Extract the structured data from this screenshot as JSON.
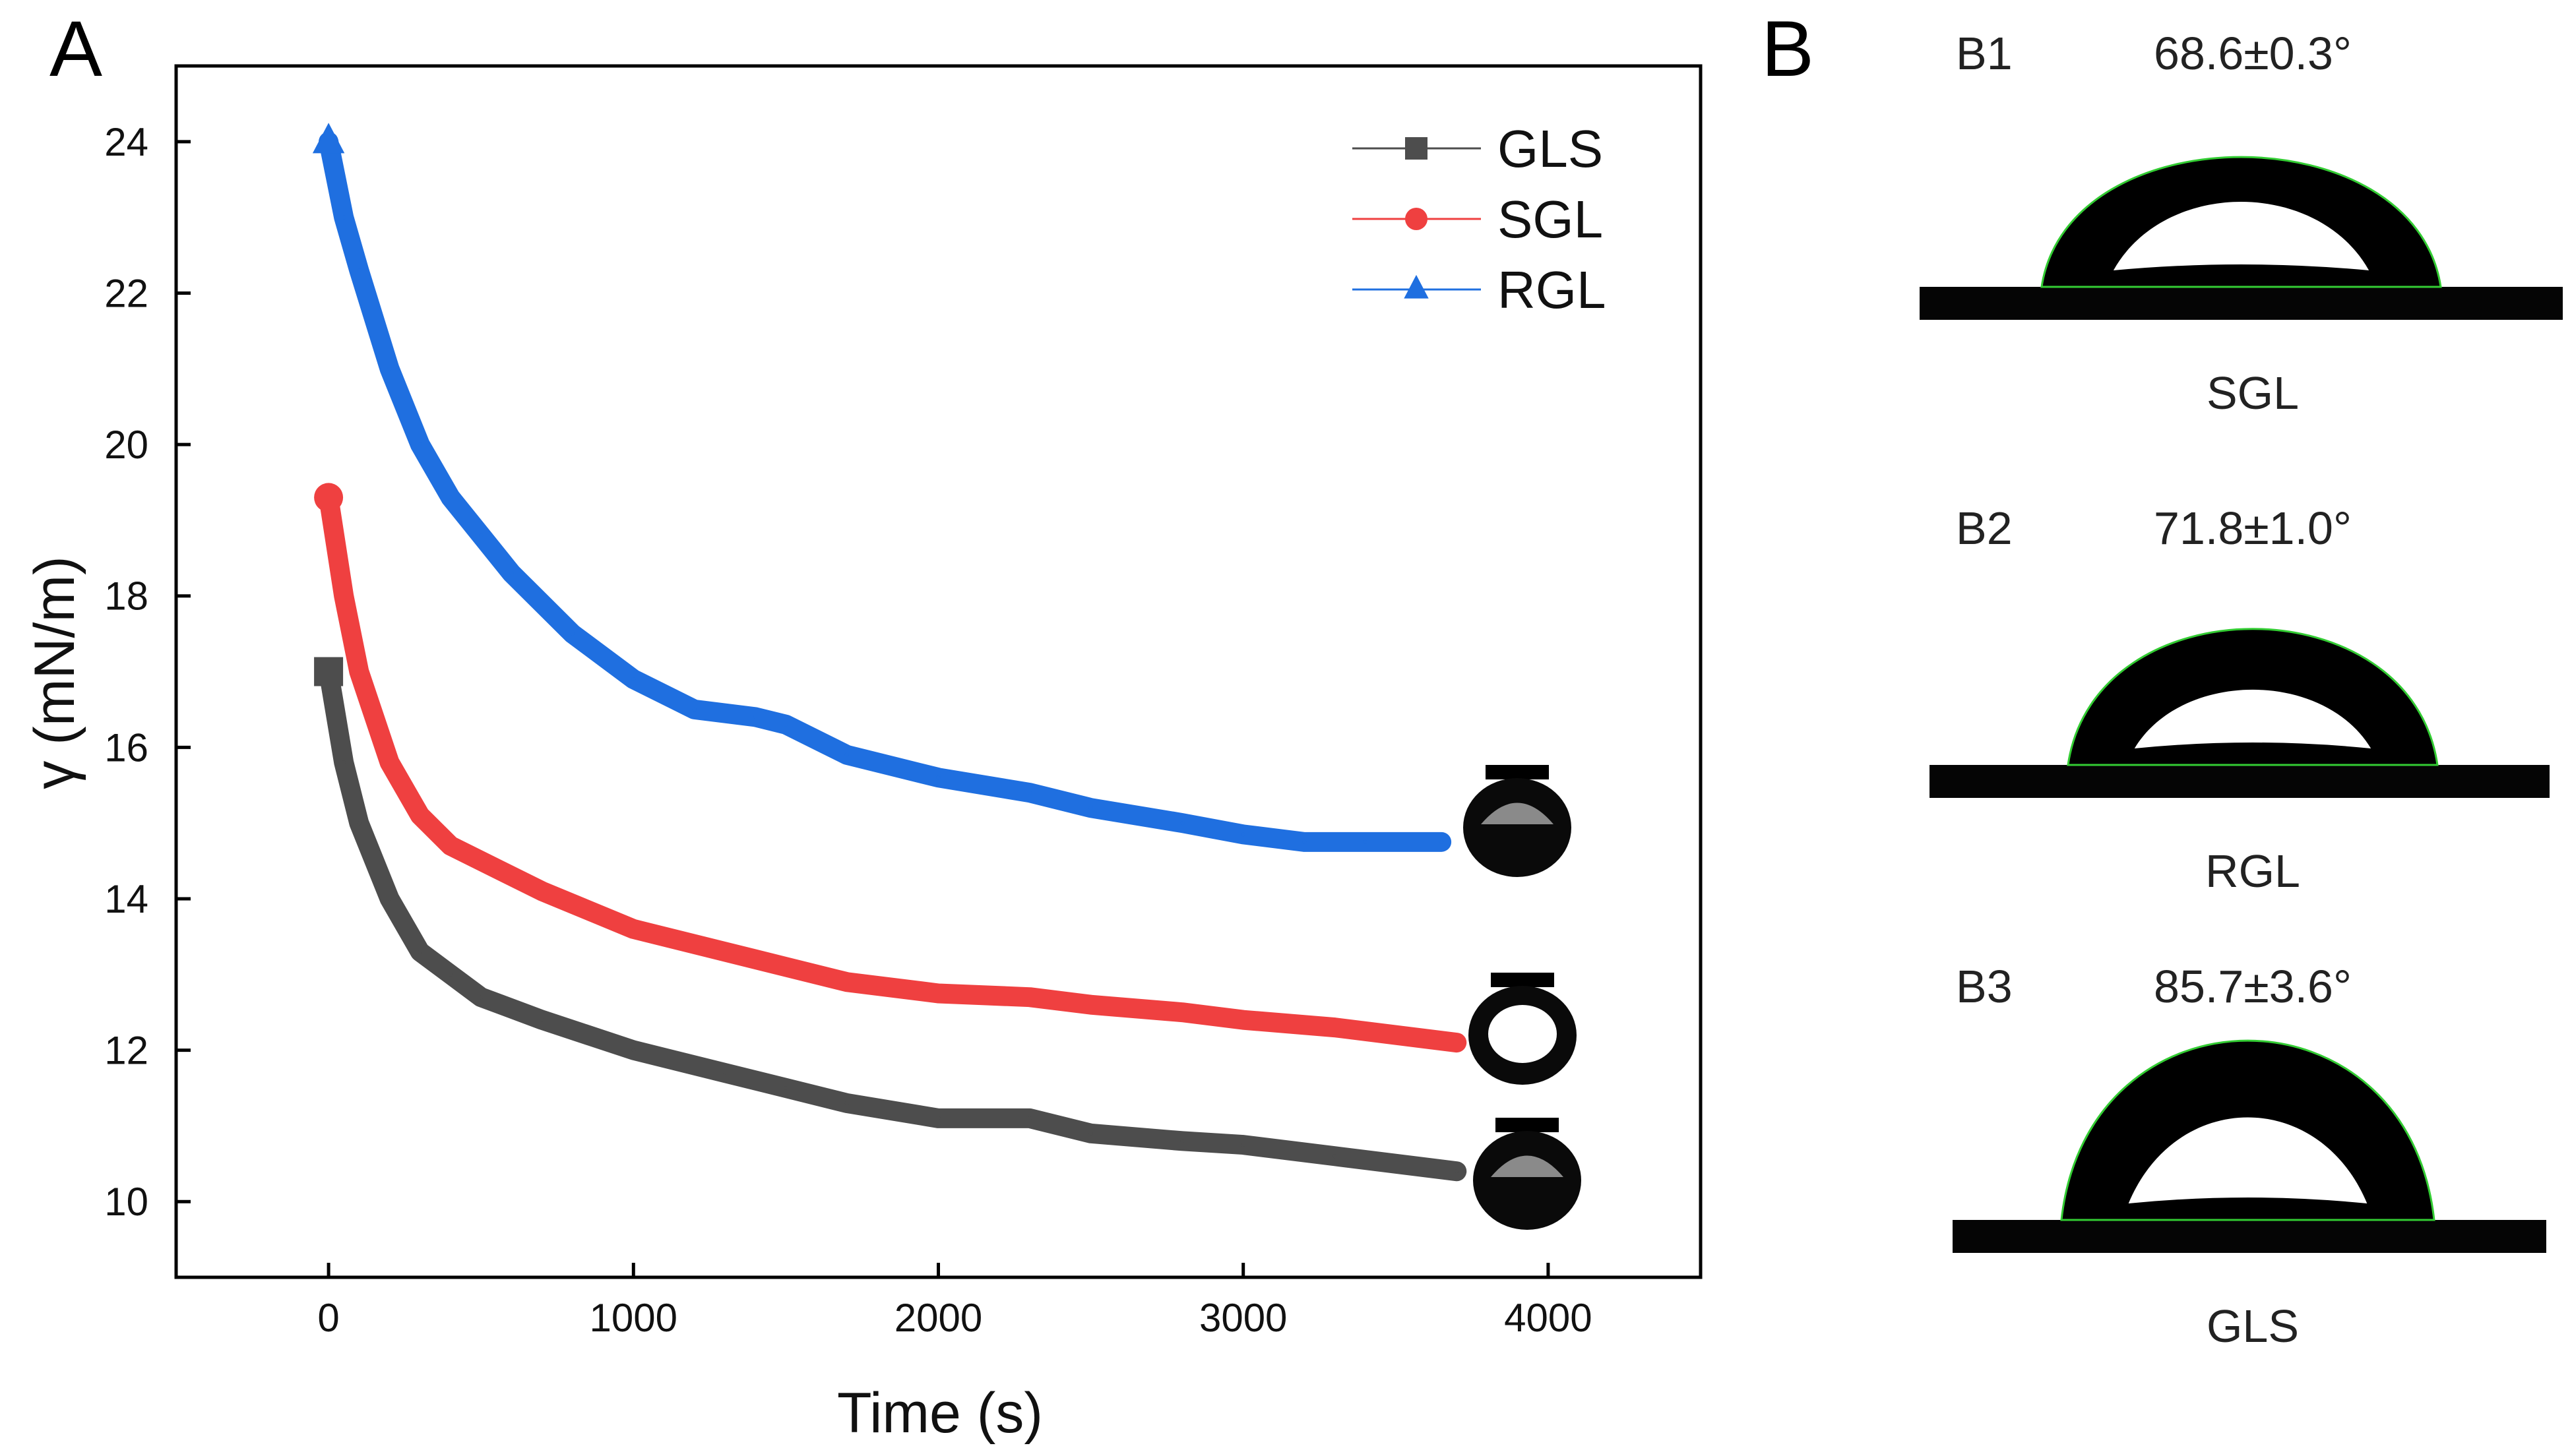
{
  "panels": {
    "a": "A",
    "b": "B"
  },
  "chart_data": {
    "type": "line",
    "title": "",
    "xlabel": "Time (s)",
    "ylabel": "γ (mN/m)",
    "xlim": [
      -500,
      4500
    ],
    "ylim": [
      9,
      25
    ],
    "xticks": [
      0,
      1000,
      2000,
      3000,
      4000
    ],
    "yticks": [
      10,
      12,
      14,
      16,
      18,
      20,
      22,
      24
    ],
    "grid": false,
    "legend_position": "top-right",
    "series": [
      {
        "name": "GLS",
        "color": "#4d4d4d",
        "marker": "square",
        "x": [
          0,
          50,
          100,
          200,
          300,
          400,
          500,
          700,
          1000,
          1300,
          1500,
          1700,
          2000,
          2300,
          2500,
          2800,
          3000,
          3300,
          3700
        ],
        "y": [
          17,
          15.8,
          15,
          14,
          13.3,
          13,
          12.7,
          12.4,
          12,
          11.7,
          11.5,
          11.3,
          11.1,
          11.1,
          10.9,
          10.8,
          10.75,
          10.6,
          10.4
        ]
      },
      {
        "name": "SGL",
        "color": "#ef4040",
        "marker": "circle",
        "x": [
          0,
          50,
          100,
          200,
          300,
          400,
          500,
          700,
          1000,
          1300,
          1500,
          1700,
          2000,
          2300,
          2500,
          2800,
          3000,
          3300,
          3700
        ],
        "y": [
          19.3,
          18,
          17,
          15.8,
          15.1,
          14.7,
          14.5,
          14.1,
          13.6,
          13.3,
          13.1,
          12.9,
          12.75,
          12.7,
          12.6,
          12.5,
          12.4,
          12.3,
          12.1
        ]
      },
      {
        "name": "RGL",
        "color": "#1f6fe0",
        "marker": "triangle",
        "x": [
          0,
          50,
          100,
          200,
          300,
          400,
          500,
          600,
          800,
          1000,
          1200,
          1400,
          1500,
          1700,
          2000,
          2300,
          2500,
          2800,
          3000,
          3200,
          3400,
          3650
        ],
        "y": [
          24,
          23,
          22.3,
          21,
          20,
          19.3,
          18.8,
          18.3,
          17.5,
          16.9,
          16.5,
          16.4,
          16.3,
          15.9,
          15.6,
          15.4,
          15.2,
          15.0,
          14.85,
          14.75,
          14.75,
          14.75
        ]
      }
    ]
  },
  "contact_angles": [
    {
      "id": "B1",
      "angle": "68.6±0.3°",
      "sample": "SGL"
    },
    {
      "id": "B2",
      "angle": "71.8±1.0°",
      "sample": "RGL"
    },
    {
      "id": "B3",
      "angle": "85.7±3.6°",
      "sample": "GLS"
    }
  ]
}
